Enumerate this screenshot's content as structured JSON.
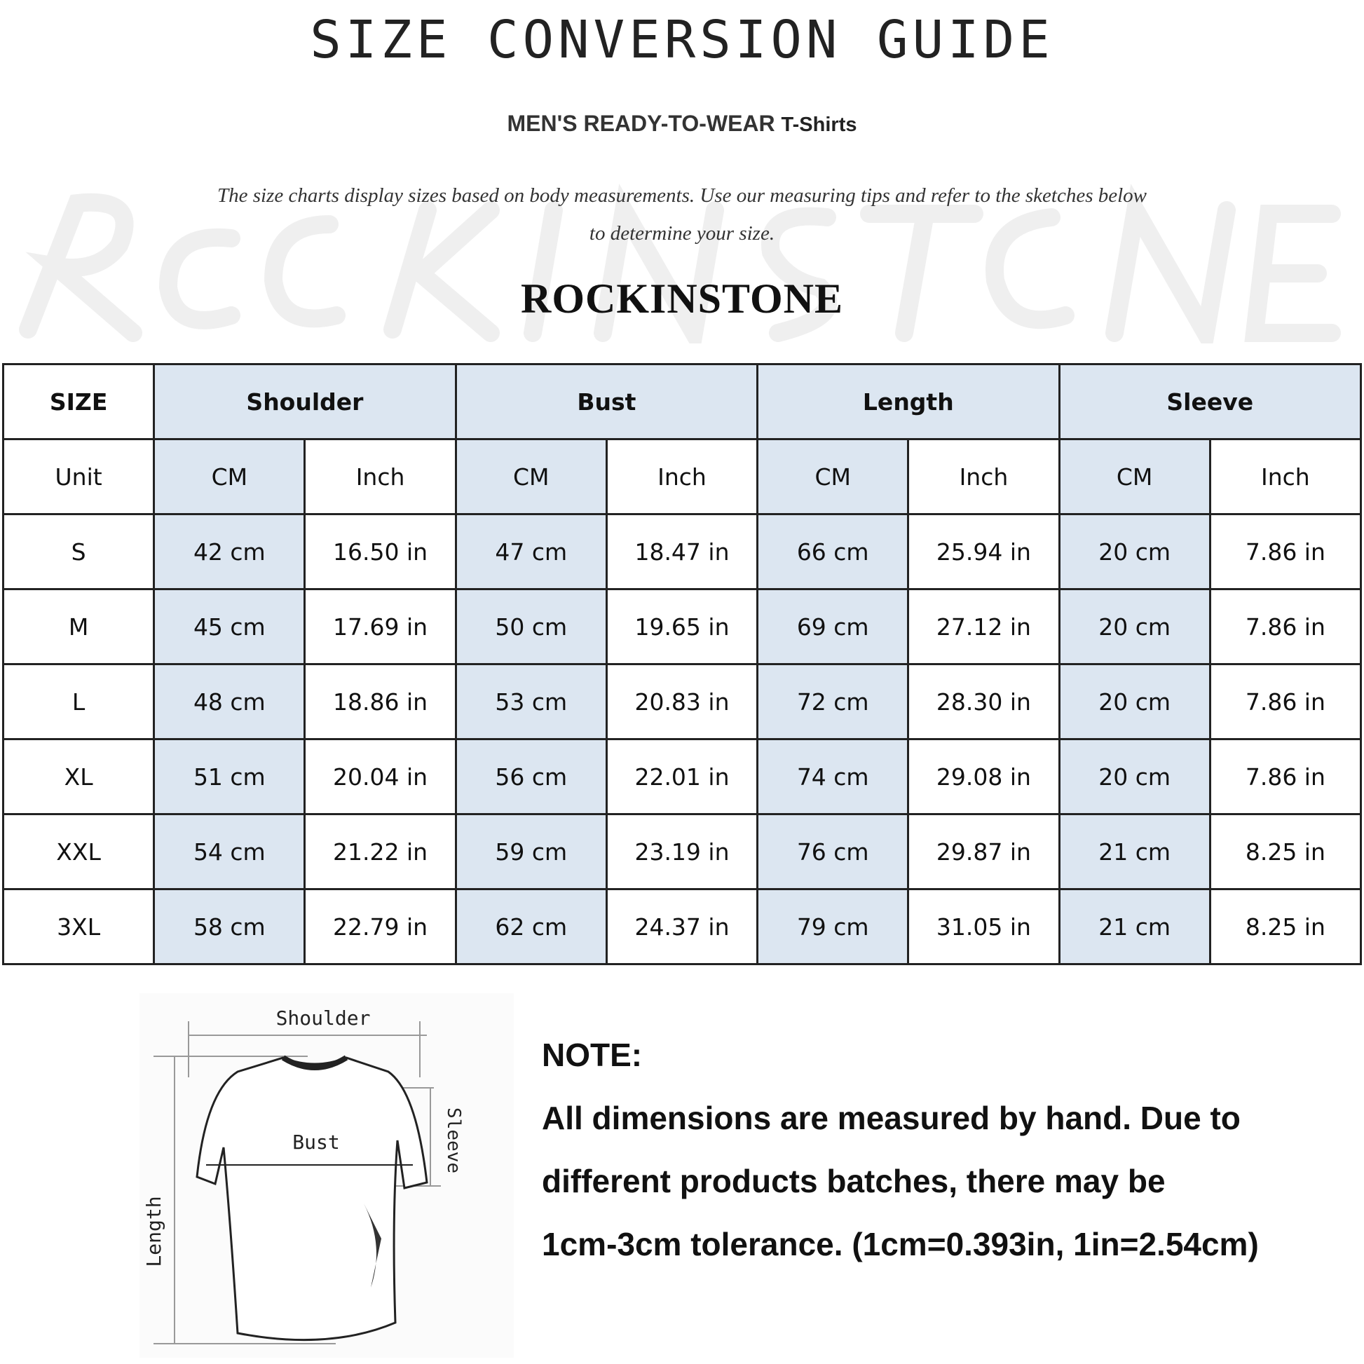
{
  "header": {
    "title": "SIZE CONVERSION GUIDE",
    "subtitle_main": "MEN'S READY-TO-WEAR",
    "subtitle_product": "T-Shirts",
    "description": "The size charts display sizes based on body measurements. Use our measuring tips and refer to the sketches below to determine your size.",
    "brand": "ROCKINSTONE",
    "watermark": "ROCKINSTONE"
  },
  "table": {
    "size_label": "SIZE",
    "unit_label": "Unit",
    "groups": [
      "Shoulder",
      "Bust",
      "Length",
      "Sleeve"
    ],
    "units": [
      "CM",
      "Inch",
      "CM",
      "Inch",
      "CM",
      "Inch",
      "CM",
      "Inch"
    ],
    "rows": [
      {
        "size": "S",
        "cells": [
          "42 cm",
          "16.50 in",
          "47 cm",
          "18.47  in",
          "66 cm",
          "25.94  in",
          "20 cm",
          "7.86  in"
        ]
      },
      {
        "size": "M",
        "cells": [
          "45 cm",
          "17.69  in",
          "50 cm",
          "19.65  in",
          "69 cm",
          "27.12  in",
          "20 cm",
          "7.86  in"
        ]
      },
      {
        "size": "L",
        "cells": [
          "48 cm",
          "18.86  in",
          "53 cm",
          "20.83  in",
          "72 cm",
          "28.30  in",
          "20 cm",
          "7.86  in"
        ]
      },
      {
        "size": "XL",
        "cells": [
          "51 cm",
          "20.04  in",
          "56 cm",
          "22.01  in",
          "74 cm",
          "29.08  in",
          "20 cm",
          "7.86  in"
        ]
      },
      {
        "size": "XXL",
        "cells": [
          "54 cm",
          "21.22  in",
          "59 cm",
          "23.19  in",
          "76 cm",
          "29.87  in",
          "21 cm",
          "8.25  in"
        ]
      },
      {
        "size": "3XL",
        "cells": [
          "58 cm",
          "22.79  in",
          "62 cm",
          "24.37  in",
          "79 cm",
          "31.05  in",
          "21 cm",
          "8.25  in"
        ]
      }
    ]
  },
  "sketch": {
    "shoulder": "Shoulder",
    "bust": "Bust",
    "length": "Length",
    "sleeve": "Sleeve"
  },
  "note": {
    "heading": "NOTE:",
    "lines": [
      "All dimensions are measured by hand. Due to",
      "different products batches, there may be",
      "1cm-3cm tolerance. (1cm=0.393in, 1in=2.54cm)"
    ]
  },
  "colors": {
    "header_fill": "#dce6f1",
    "border": "#222222"
  }
}
